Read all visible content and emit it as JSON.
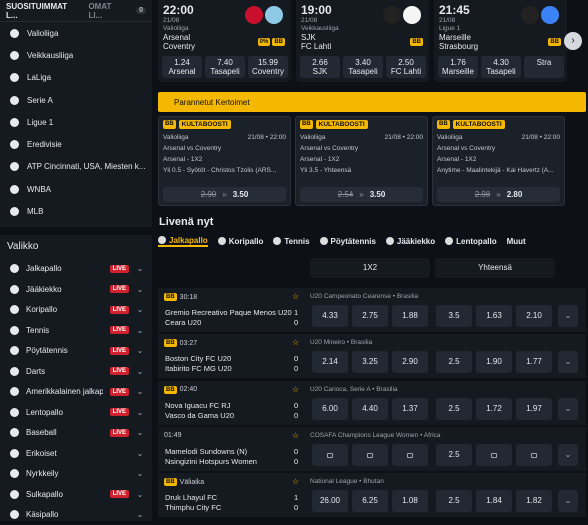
{
  "sidebar": {
    "tabs": [
      "SUOSITUIMMAT L...",
      "OMAT LI..."
    ],
    "tab_badge": "0",
    "favorites": [
      "Valioliiga",
      "Veikkausliiga",
      "LaLiga",
      "Serie A",
      "Ligue 1",
      "Eredivisie",
      "ATP Cincinnati, USA, Miesten k...",
      "WNBA",
      "MLB"
    ],
    "menu_title": "Valikko",
    "menu": [
      {
        "label": "Jalkapallo",
        "live": "LIVE"
      },
      {
        "label": "Jääkiekko",
        "live": "LIVE"
      },
      {
        "label": "Koripallo",
        "live": "LIVE"
      },
      {
        "label": "Tennis",
        "live": "LIVE"
      },
      {
        "label": "Pöytätennis",
        "live": "LIVE"
      },
      {
        "label": "Darts",
        "live": "LIVE"
      },
      {
        "label": "Amerikkalainen jalkapallo",
        "live": "LIVE"
      },
      {
        "label": "Lentopallo",
        "live": "LIVE"
      },
      {
        "label": "Baseball",
        "live": "LIVE"
      },
      {
        "label": "Erikoiset"
      },
      {
        "label": "Nyrkkeily"
      },
      {
        "label": "Sulkapallo",
        "live": "LIVE"
      },
      {
        "label": "Käsipallo"
      }
    ]
  },
  "featured": [
    {
      "time": "22:00",
      "date": "21/08",
      "league": "Valioliiga",
      "home": "Arsenal",
      "away": "Coventry",
      "badges": [
        "0%",
        "BB"
      ],
      "odds": [
        {
          "value": "1.24",
          "label": "Arsenal"
        },
        {
          "value": "7.40",
          "label": "Tasapeli"
        },
        {
          "value": "15.99",
          "label": "Coventry"
        }
      ]
    },
    {
      "time": "19:00",
      "date": "21/08",
      "league": "Veikkausliiga",
      "home": "SJK",
      "away": "FC Lahti",
      "badges": [
        "BB"
      ],
      "odds": [
        {
          "value": "2.66",
          "label": "SJK"
        },
        {
          "value": "3.40",
          "label": "Tasapeli"
        },
        {
          "value": "2.50",
          "label": "FC Lahti"
        }
      ]
    },
    {
      "time": "21:45",
      "date": "21/08",
      "league": "Ligue 1",
      "home": "Marseille",
      "away": "Strasbourg",
      "badges": [
        "BB"
      ],
      "odds": [
        {
          "value": "1.76",
          "label": "Marseille"
        },
        {
          "value": "4.30",
          "label": "Tasapeli"
        },
        {
          "label": "Stra"
        }
      ]
    }
  ],
  "banner": "Parannetut Kertoimet",
  "boosts": [
    {
      "tag": "KULTABOOSTI",
      "league": "Valioliiga",
      "datetime": "21/08 • 22:00",
      "match": "Arsenal vs Coventry",
      "selections": [
        "Arsenal - 1X2",
        "Yli 0.5 - Syötöt - Christos Tzolis (ARS..."
      ],
      "old": "2.90",
      "new": "3.50"
    },
    {
      "tag": "KULTABOOSTI",
      "league": "Valioliiga",
      "datetime": "21/08 • 22:00",
      "match": "Arsenal vs Coventry",
      "selections": [
        "Arsenal - 1X2",
        "Yli 3.5 - Yhteensä"
      ],
      "old": "2.54",
      "new": "3.50"
    },
    {
      "tag": "KULTABOOSTI",
      "league": "Valioliiga",
      "datetime": "21/08 • 22:00",
      "match": "Arsenal vs Coventry",
      "selections": [
        "Arsenal - 1X2",
        "Anytime - Maalintekijä - Kai Havertz (A..."
      ],
      "old": "2.98",
      "new": "2.80"
    }
  ],
  "live": {
    "title": "Livenä nyt",
    "sports": [
      "Jalkapallo",
      "Koripallo",
      "Tennis",
      "Pöytätennis",
      "Jääkiekko",
      "Lentopallo",
      "Muut"
    ],
    "markets": [
      "1X2",
      "Yhteensä"
    ],
    "events": [
      {
        "badge": "BB",
        "clock": "30:18",
        "competition": "U20 Campeonato Cearense • Brasilia",
        "home": "Gremio Recreativo Paque Menos U20",
        "away": "Ceara U20",
        "home_score": "1",
        "away_score": "0",
        "odds": [
          "4.33",
          "2.75",
          "1.88"
        ],
        "total": [
          "3.5",
          "1.63",
          "2.10"
        ]
      },
      {
        "badge": "BB",
        "clock": "03:27",
        "competition": "U20 Mineiro • Brasilia",
        "home": "Boston City FC U20",
        "away": "Itabirito FC MG U20",
        "home_score": "0",
        "away_score": "0",
        "odds": [
          "2.14",
          "3.25",
          "2.90"
        ],
        "total": [
          "2.5",
          "1.90",
          "1.77"
        ]
      },
      {
        "badge": "BB",
        "clock": "02:40",
        "competition": "U20 Carioca, Serie A • Brasilia",
        "home": "Nova Iguacu FC RJ",
        "away": "Vasco da Gama U20",
        "home_score": "0",
        "away_score": "0",
        "odds": [
          "6.00",
          "4.40",
          "1.37"
        ],
        "total": [
          "2.5",
          "1.72",
          "1.97"
        ]
      },
      {
        "clock": "01:49",
        "competition": "COSAFA Champions League Women • Africa",
        "home": "Mamelodi Sundowns (N)",
        "away": "Nsingizini Hotspurs Women",
        "home_score": "0",
        "away_score": "0",
        "odds": [
          null,
          null,
          null
        ],
        "total": [
          "2.5",
          null,
          null
        ]
      },
      {
        "badge": "BB",
        "clock": "Väliaika",
        "competition": "National League • Bhutan",
        "home": "Druk Lhayul FC",
        "away": "Thimphu City FC",
        "home_score": "1",
        "away_score": "0",
        "odds": [
          "26.00",
          "6.25",
          "1.08"
        ],
        "total": [
          "2.5",
          "1.84",
          "1.82"
        ]
      }
    ]
  }
}
